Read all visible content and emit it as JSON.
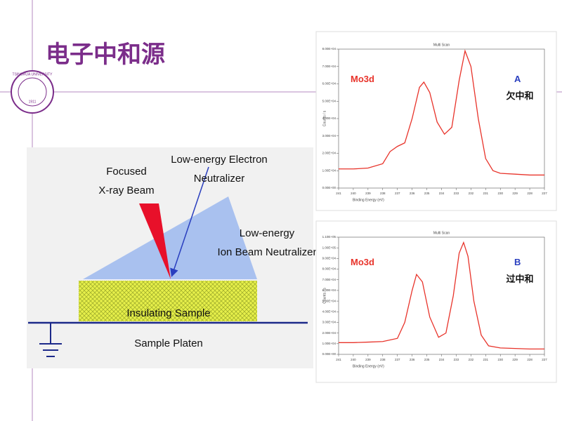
{
  "header": {
    "title": "电子中和源"
  },
  "logo": {
    "text": "TSINGHUA UNIVERSITY",
    "year": "1911"
  },
  "diagram": {
    "xray": [
      "Focused",
      "X-ray Beam"
    ],
    "electron": [
      "Low-energy Electron",
      "Neutralizer"
    ],
    "ion": [
      "Low-energy",
      "Ion Beam Neutralizer"
    ],
    "sample": "Insulating Sample",
    "platen": "Sample Platen"
  },
  "chart_data": [
    {
      "type": "line",
      "title": "Multi Scan",
      "xlabel": "Binding Energy (eV)",
      "ylabel": "Counts / s",
      "color": "#e8332a",
      "x": [
        241,
        240,
        239,
        238,
        237.5,
        237,
        236.5,
        236,
        235.5,
        235.2,
        234.8,
        234.3,
        233.8,
        233.3,
        232.8,
        232.4,
        232,
        231.5,
        231,
        230.5,
        230,
        229,
        228,
        227
      ],
      "values": [
        11000,
        11000,
        11500,
        14000,
        21000,
        24000,
        26000,
        40000,
        58000,
        61000,
        55000,
        38000,
        31000,
        35000,
        62000,
        79000,
        70000,
        40000,
        17000,
        10000,
        8500,
        8000,
        7500,
        7500
      ],
      "xlim": [
        241,
        227
      ],
      "xticks": [
        241,
        240,
        239,
        238,
        237,
        236,
        235,
        234,
        233,
        232,
        231,
        230,
        229,
        228,
        227
      ],
      "ylim": [
        0,
        80000
      ],
      "yticks": [
        {
          "value": 0,
          "label": "0.00E+00"
        },
        {
          "value": 10000,
          "label": "1.00E+04"
        },
        {
          "value": 20000,
          "label": "2.00E+04"
        },
        {
          "value": 30000,
          "label": "3.00E+04"
        },
        {
          "value": 40000,
          "label": "4.00E+04"
        },
        {
          "value": 50000,
          "label": "5.00E+04"
        },
        {
          "value": 60000,
          "label": "6.00E+04"
        },
        {
          "value": 70000,
          "label": "7.00E+04"
        },
        {
          "value": 80000,
          "label": "8.00E+04"
        }
      ],
      "label": "Mo3d",
      "tag": "A",
      "note": "欠中和"
    },
    {
      "type": "line",
      "title": "Multi Scan",
      "xlabel": "Binding Energy (eV)",
      "ylabel": "Counts / s",
      "color": "#e8332a",
      "x": [
        241,
        240,
        239,
        238,
        237,
        236.5,
        236,
        235.7,
        235.3,
        234.8,
        234.2,
        233.7,
        233.2,
        232.8,
        232.5,
        232.2,
        231.8,
        231.3,
        230.8,
        230,
        229,
        228,
        227
      ],
      "values": [
        11000,
        11000,
        11500,
        12000,
        15000,
        30000,
        60000,
        75000,
        68000,
        35000,
        16000,
        20000,
        55000,
        95000,
        105000,
        92000,
        50000,
        18000,
        8000,
        6000,
        5500,
        5000,
        5000
      ],
      "xlim": [
        241,
        227
      ],
      "xticks": [
        241,
        240,
        239,
        238,
        237,
        236,
        235,
        234,
        233,
        232,
        231,
        230,
        229,
        228,
        227
      ],
      "ylim": [
        0,
        110000
      ],
      "yticks": [
        {
          "value": 0,
          "label": "0.00E+00"
        },
        {
          "value": 10000,
          "label": "1.00E+04"
        },
        {
          "value": 20000,
          "label": "2.00E+04"
        },
        {
          "value": 30000,
          "label": "3.00E+04"
        },
        {
          "value": 40000,
          "label": "4.00E+04"
        },
        {
          "value": 50000,
          "label": "5.00E+04"
        },
        {
          "value": 60000,
          "label": "6.00E+04"
        },
        {
          "value": 70000,
          "label": "7.00E+04"
        },
        {
          "value": 80000,
          "label": "8.00E+04"
        },
        {
          "value": 90000,
          "label": "9.00E+04"
        },
        {
          "value": 100000,
          "label": "1.00E+05"
        },
        {
          "value": 110000,
          "label": "1.10E+05"
        }
      ],
      "label": "Mo3d",
      "tag": "B",
      "note": "过中和"
    }
  ]
}
